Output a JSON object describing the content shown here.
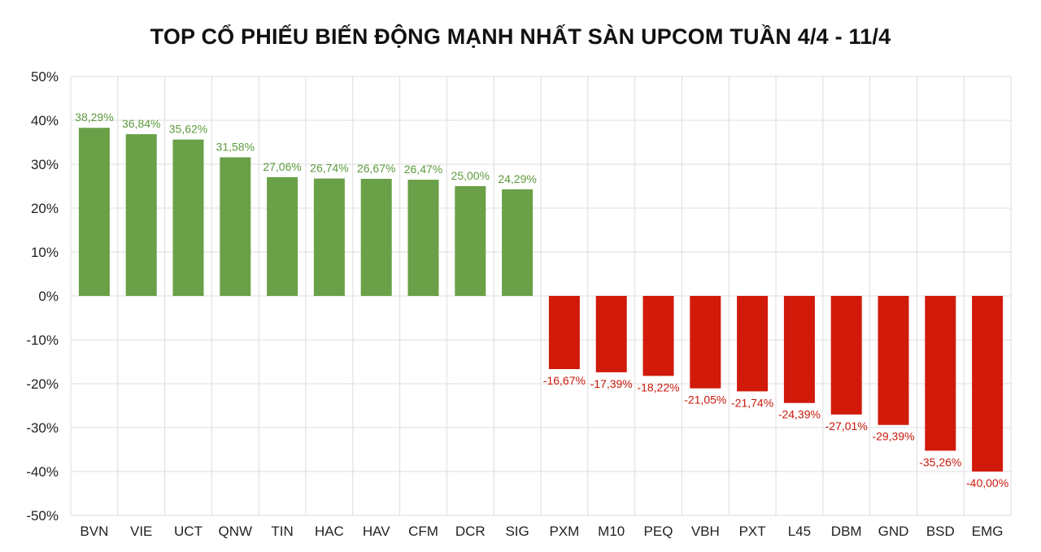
{
  "chart_data": {
    "type": "bar",
    "title": "TOP CỔ PHIẾU BIẾN ĐỘNG MẠNH NHẤT SÀN UPCOM TUẦN 4/4 - 11/4",
    "xlabel": "",
    "ylabel": "",
    "categories": [
      "BVN",
      "VIE",
      "UCT",
      "QNW",
      "TIN",
      "HAC",
      "HAV",
      "CFM",
      "DCR",
      "SIG",
      "PXM",
      "M10",
      "PEQ",
      "VBH",
      "PXT",
      "L45",
      "DBM",
      "GND",
      "BSD",
      "EMG"
    ],
    "values": [
      38.29,
      36.84,
      35.62,
      31.58,
      27.06,
      26.74,
      26.67,
      26.47,
      25.0,
      24.29,
      -16.67,
      -17.39,
      -18.22,
      -21.05,
      -21.74,
      -24.39,
      -27.01,
      -29.39,
      -35.26,
      -40.0
    ],
    "data_labels": [
      "38,29%",
      "36,84%",
      "35,62%",
      "31,58%",
      "27,06%",
      "26,74%",
      "26,67%",
      "26,47%",
      "25,00%",
      "24,29%",
      "-16,67%",
      "-17,39%",
      "-18,22%",
      "-21,05%",
      "-21,74%",
      "-24,39%",
      "-27,01%",
      "-29,39%",
      "-35,26%",
      "-40,00%"
    ],
    "ylim": [
      -50,
      50
    ],
    "yticks": [
      50,
      40,
      30,
      20,
      10,
      0,
      -10,
      -20,
      -30,
      -40,
      -50
    ],
    "ytick_labels": [
      "50%",
      "40%",
      "30%",
      "20%",
      "10%",
      "0%",
      "-10%",
      "-20%",
      "-30%",
      "-40%",
      "-50%"
    ],
    "grid": true,
    "legend": "none",
    "colors": {
      "positive": "#6aa047",
      "negative": "#d11a0a",
      "positive_label": "#5d9a3c",
      "negative_label": "#c8180a",
      "grid": "#dcdcdc"
    }
  }
}
